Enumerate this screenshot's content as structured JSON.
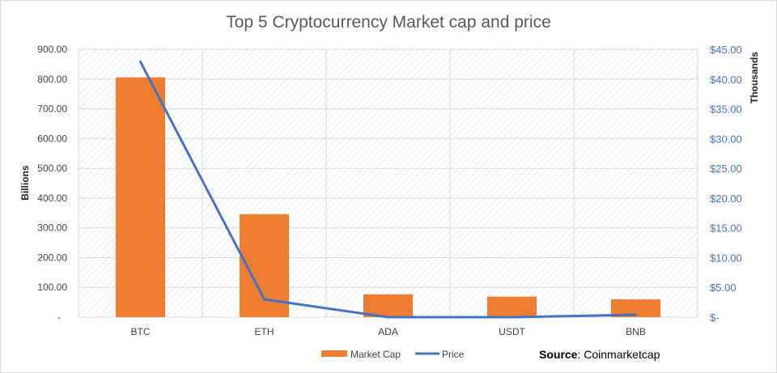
{
  "chart_data": {
    "type": "bar+line",
    "title": "Top 5 Cryptocurrency Market cap and price",
    "categories": [
      "BTC",
      "ETH",
      "ADA",
      "USDT",
      "BNB"
    ],
    "series": [
      {
        "name": "Market Cap",
        "type": "bar",
        "axis": "left",
        "color": "#ed7d31",
        "values": [
          806,
          346,
          77,
          69,
          60
        ]
      },
      {
        "name": "Price",
        "type": "line",
        "axis": "right",
        "color": "#4472c4",
        "values": [
          42.9,
          3.0,
          0.0,
          0.0,
          0.4
        ]
      }
    ],
    "left_axis": {
      "label": "Billions",
      "ylim": [
        0,
        900
      ],
      "ticks": [
        0,
        100,
        200,
        300,
        400,
        500,
        600,
        700,
        800,
        900
      ],
      "tick_labels": [
        "-",
        "100.00",
        "200.00",
        "300.00",
        "400.00",
        "500.00",
        "600.00",
        "700.00",
        "800.00",
        "900.00"
      ]
    },
    "right_axis": {
      "label": "Thousands",
      "ylim": [
        0,
        45
      ],
      "ticks": [
        0,
        5,
        10,
        15,
        20,
        25,
        30,
        35,
        40,
        45
      ],
      "tick_labels": [
        "$-",
        "$5.00",
        "$10.00",
        "$15.00",
        "$20.00",
        "$25.00",
        "$30.00",
        "$35.00",
        "$40.00",
        "$45.00"
      ],
      "color": "#4472c4"
    },
    "grid": true,
    "legend": {
      "placement": "bottom",
      "entries": [
        "Market Cap",
        "Price"
      ]
    },
    "source": {
      "label": "Source",
      "text": ": Coinmarketcap"
    }
  }
}
